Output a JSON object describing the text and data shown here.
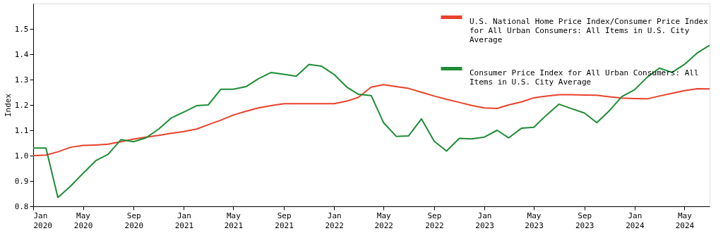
{
  "chart_data": {
    "type": "line",
    "ylabel": "Index",
    "x": [
      "2020-01",
      "2020-02",
      "2020-03",
      "2020-04",
      "2020-05",
      "2020-06",
      "2020-07",
      "2020-08",
      "2020-09",
      "2020-10",
      "2020-11",
      "2020-12",
      "2021-01",
      "2021-02",
      "2021-03",
      "2021-04",
      "2021-05",
      "2021-06",
      "2021-07",
      "2021-08",
      "2021-09",
      "2021-10",
      "2021-11",
      "2021-12",
      "2022-01",
      "2022-02",
      "2022-03",
      "2022-04",
      "2022-05",
      "2022-06",
      "2022-07",
      "2022-08",
      "2022-09",
      "2022-10",
      "2022-11",
      "2022-12",
      "2023-01",
      "2023-02",
      "2023-03",
      "2023-04",
      "2023-05",
      "2023-06",
      "2023-07",
      "2023-08",
      "2023-09",
      "2023-10",
      "2023-11",
      "2023-12",
      "2024-01",
      "2024-02",
      "2024-03",
      "2024-04",
      "2024-05",
      "2024-06",
      "2024-07"
    ],
    "series": [
      {
        "name": "U.S. National Home Price Index/Consumer Price Index for All Urban Consumers: All Items in U.S. City Average",
        "color": "#e8412a",
        "values": [
          1.0,
          1.002,
          1.015,
          1.033,
          1.04,
          1.042,
          1.045,
          1.055,
          1.065,
          1.073,
          1.08,
          1.088,
          1.095,
          1.105,
          1.122,
          1.14,
          1.16,
          1.175,
          1.188,
          1.197,
          1.205,
          1.205,
          1.205,
          1.205,
          1.205,
          1.215,
          1.23,
          1.27,
          1.28,
          1.272,
          1.265,
          1.25,
          1.235,
          1.222,
          1.21,
          1.198,
          1.188,
          1.186,
          1.2,
          1.212,
          1.228,
          1.235,
          1.24,
          1.24,
          1.239,
          1.238,
          1.232,
          1.227,
          1.225,
          1.224,
          1.235,
          1.246,
          1.256,
          1.264,
          1.263
        ]
      },
      {
        "name": "Consumer Price Index for All Urban Consumers: All Items in U.S. City Average",
        "color": "#1e8c35",
        "values": [
          1.03,
          1.03,
          0.835,
          0.88,
          0.93,
          0.98,
          1.005,
          1.063,
          1.055,
          1.07,
          1.105,
          1.148,
          1.172,
          1.197,
          1.2,
          1.262,
          1.262,
          1.272,
          1.303,
          1.328,
          1.321,
          1.313,
          1.36,
          1.353,
          1.32,
          1.27,
          1.242,
          1.237,
          1.13,
          1.076,
          1.078,
          1.145,
          1.057,
          1.018,
          1.068,
          1.066,
          1.073,
          1.1,
          1.07,
          1.108,
          1.112,
          1.16,
          1.203,
          1.185,
          1.168,
          1.13,
          1.178,
          1.233,
          1.26,
          1.31,
          1.345,
          1.328,
          1.36,
          1.405,
          1.435
        ]
      }
    ],
    "xlim": [
      "2020-01",
      "2024-07"
    ],
    "xticks": [
      {
        "value": "2020-01",
        "label": "Jan 2020"
      },
      {
        "value": "2020-05",
        "label": "May 2020"
      },
      {
        "value": "2020-09",
        "label": "Sep 2020"
      },
      {
        "value": "2021-01",
        "label": "Jan 2021"
      },
      {
        "value": "2021-05",
        "label": "May 2021"
      },
      {
        "value": "2021-09",
        "label": "Sep 2021"
      },
      {
        "value": "2022-01",
        "label": "Jan 2022"
      },
      {
        "value": "2022-05",
        "label": "May 2022"
      },
      {
        "value": "2022-09",
        "label": "Sep 2022"
      },
      {
        "value": "2023-01",
        "label": "Jan 2023"
      },
      {
        "value": "2023-05",
        "label": "May 2023"
      },
      {
        "value": "2023-09",
        "label": "Sep 2023"
      },
      {
        "value": "2024-01",
        "label": "Jan 2024"
      },
      {
        "value": "2024-05",
        "label": "May 2024"
      }
    ],
    "ylim": [
      0.8,
      1.6
    ],
    "yticks": [
      0.8,
      0.9,
      {
        "value": 1.0,
        "label": "1.0"
      },
      1.1,
      1.2,
      1.3,
      1.4,
      1.5
    ],
    "grid": false,
    "legend": "top right",
    "marker": "none",
    "line_style": "solid"
  }
}
